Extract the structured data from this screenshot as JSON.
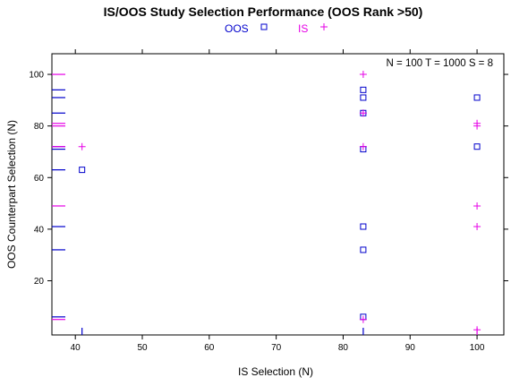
{
  "chart_data": {
    "type": "scatter",
    "title": "IS/OOS Study Selection Performance (OOS Rank >50)",
    "xlabel": "IS Selection (N)",
    "ylabel": "OOS Counterpart Selection (N)",
    "xlim": [
      36.5,
      104
    ],
    "ylim": [
      -1,
      108
    ],
    "xticks": [
      40,
      50,
      60,
      70,
      80,
      90,
      100
    ],
    "yticks": [
      20,
      40,
      60,
      80,
      100
    ],
    "annotation": "N = 100  T = 1000  S = 8",
    "legend": {
      "placement": "top",
      "entries": [
        {
          "label": "OOS",
          "color": "#0000cc",
          "marker": "square"
        },
        {
          "label": "IS",
          "color": "#e600e6",
          "marker": "plus"
        }
      ]
    },
    "series": [
      {
        "name": "OOS",
        "color": "#0000cc",
        "marker": "square",
        "points": [
          [
            41,
            63
          ],
          [
            83,
            94
          ],
          [
            83,
            91
          ],
          [
            83,
            85
          ],
          [
            83,
            71
          ],
          [
            83,
            41
          ],
          [
            83,
            32
          ],
          [
            83,
            6
          ],
          [
            100,
            91
          ],
          [
            100,
            72
          ]
        ],
        "rug_x": [
          41,
          83
        ],
        "rug_y": [
          94,
          91,
          85,
          72,
          71,
          63,
          41,
          32,
          6
        ]
      },
      {
        "name": "IS",
        "color": "#e600e6",
        "marker": "plus",
        "points": [
          [
            41,
            72
          ],
          [
            83,
            100
          ],
          [
            83,
            85
          ],
          [
            83,
            72
          ],
          [
            83,
            5
          ],
          [
            100,
            81
          ],
          [
            100,
            80
          ],
          [
            100,
            49
          ],
          [
            100,
            41
          ],
          [
            100,
            1
          ]
        ],
        "rug_x": [
          100
        ],
        "rug_y": [
          100,
          81,
          80,
          72,
          49,
          5
        ]
      }
    ],
    "grid": false
  }
}
